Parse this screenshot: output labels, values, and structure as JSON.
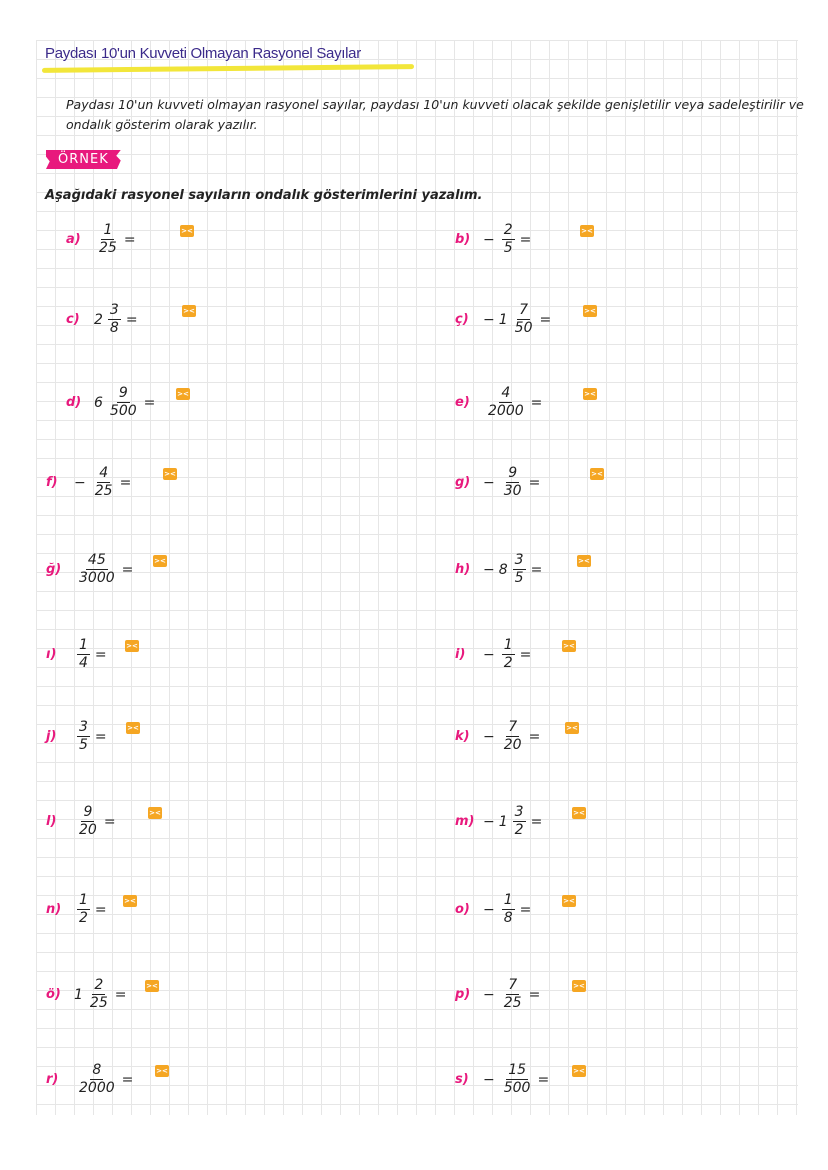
{
  "title": "Paydası 10'un Kuvveti Olmayan Rasyonel Sayılar",
  "intro": "Paydası 10'un kuvveti olmayan rasyonel sayılar, paydası 10'un kuvveti olacak şekilde genişletilir veya sadeleştirilir ve ondalık gösterim olarak yazılır.",
  "example_badge": "ÖRNEK",
  "instruction": "Aşağıdaki rasyonel sayıların ondalık gösterimlerini yazalım.",
  "answer_icon": "><",
  "colors": {
    "accent": "#e8197d",
    "title": "#3b2a8a",
    "highlight": "#f2e63a",
    "key": "#f5a623"
  },
  "problems": [
    {
      "label": "a)",
      "sign": "",
      "whole": "",
      "num": "1",
      "den": "25",
      "eq": "="
    },
    {
      "label": "b)",
      "sign": "−",
      "whole": "",
      "num": "2",
      "den": "5",
      "eq": "="
    },
    {
      "label": "c)",
      "sign": "",
      "whole": "2",
      "num": "3",
      "den": "8",
      "eq": "="
    },
    {
      "label": "ç)",
      "sign": "−",
      "whole": "1",
      "num": "7",
      "den": "50",
      "eq": "="
    },
    {
      "label": "d)",
      "sign": "",
      "whole": "6",
      "num": "9",
      "den": "500",
      "eq": "="
    },
    {
      "label": "e)",
      "sign": "",
      "whole": "",
      "num": "4",
      "den": "2000",
      "eq": "="
    },
    {
      "label": "f)",
      "sign": "−",
      "whole": "",
      "num": "4",
      "den": "25",
      "eq": "="
    },
    {
      "label": "g)",
      "sign": "−",
      "whole": "",
      "num": "9",
      "den": "30",
      "eq": "="
    },
    {
      "label": "ğ)",
      "sign": "",
      "whole": "",
      "num": "45",
      "den": "3000",
      "eq": "="
    },
    {
      "label": "h)",
      "sign": "−",
      "whole": "8",
      "num": "3",
      "den": "5",
      "eq": "="
    },
    {
      "label": "ı)",
      "sign": "",
      "whole": "",
      "num": "1",
      "den": "4",
      "eq": "="
    },
    {
      "label": "i)",
      "sign": "−",
      "whole": "",
      "num": "1",
      "den": "2",
      "eq": "="
    },
    {
      "label": "j)",
      "sign": "",
      "whole": "",
      "num": "3",
      "den": "5",
      "eq": "="
    },
    {
      "label": "k)",
      "sign": "−",
      "whole": "",
      "num": "7",
      "den": "20",
      "eq": "="
    },
    {
      "label": "l)",
      "sign": "",
      "whole": "",
      "num": "9",
      "den": "20",
      "eq": "="
    },
    {
      "label": "m)",
      "sign": "−",
      "whole": "1",
      "num": "3",
      "den": "2",
      "eq": "="
    },
    {
      "label": "n)",
      "sign": "",
      "whole": "",
      "num": "1",
      "den": "2",
      "eq": "="
    },
    {
      "label": "o)",
      "sign": "−",
      "whole": "",
      "num": "1",
      "den": "8",
      "eq": "="
    },
    {
      "label": "ö)",
      "sign": "",
      "whole": "1",
      "num": "2",
      "den": "25",
      "eq": "="
    },
    {
      "label": "p)",
      "sign": "−",
      "whole": "",
      "num": "7",
      "den": "25",
      "eq": "="
    },
    {
      "label": "r)",
      "sign": "",
      "whole": "",
      "num": "8",
      "den": "2000",
      "eq": "="
    },
    {
      "label": "s)",
      "sign": "−",
      "whole": "",
      "num": "15",
      "den": "500",
      "eq": "="
    }
  ]
}
